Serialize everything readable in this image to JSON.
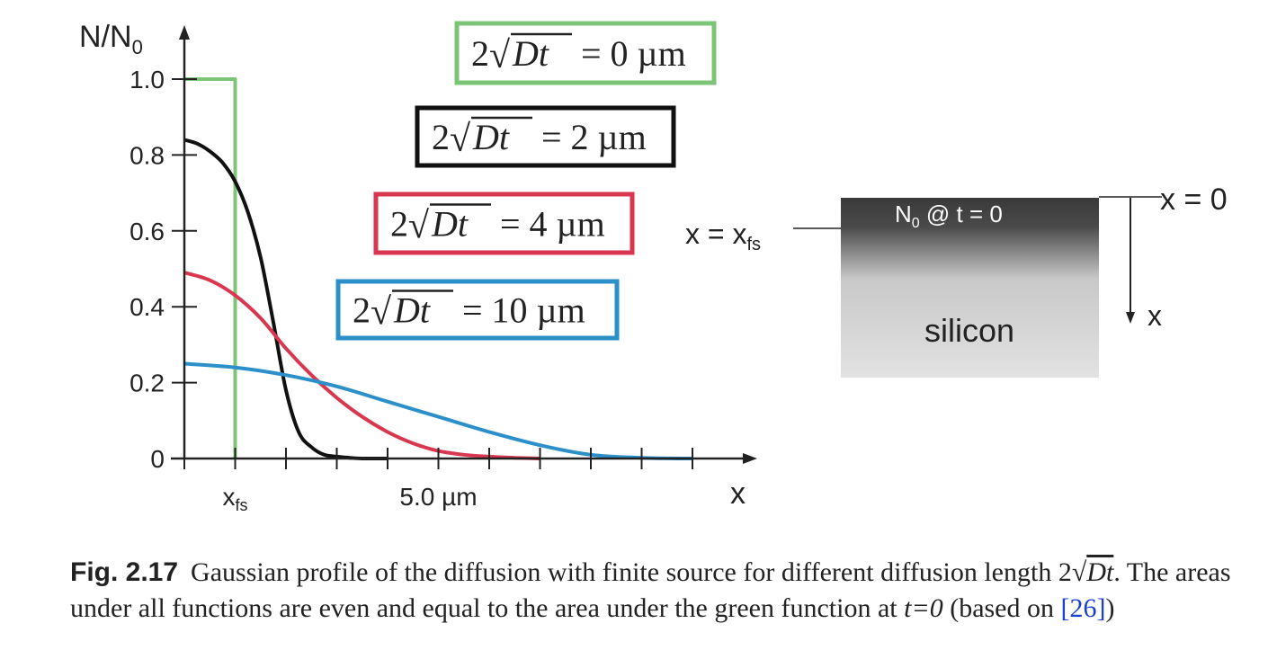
{
  "chart_data": {
    "type": "line",
    "ylabel": "N/N",
    "ylabel_sub": "0",
    "xlabel": "x",
    "ylim": [
      0,
      1.0
    ],
    "xlim": [
      0,
      10
    ],
    "y_ticks": [
      {
        "value": 0,
        "label": "0"
      },
      {
        "value": 0.2,
        "label": "0.2"
      },
      {
        "value": 0.4,
        "label": "0.4"
      },
      {
        "value": 0.6,
        "label": "0.6"
      },
      {
        "value": 0.8,
        "label": "0.8"
      },
      {
        "value": 1.0,
        "label": "1.0"
      }
    ],
    "x_ticks": [
      0,
      1,
      2,
      3,
      4,
      5,
      6,
      7,
      8,
      9,
      10
    ],
    "x_tick_labels": [
      {
        "value": 1,
        "label": "x",
        "sub": "fs"
      },
      {
        "value": 5,
        "label": "5.0 µm",
        "sub": ""
      }
    ],
    "series": [
      {
        "name": "2√Dt = 0 µm",
        "prefix": "2",
        "radicand": "Dt",
        "equals": "= 0 µm",
        "color": "#7cc576",
        "x": [
          0,
          1,
          1
        ],
        "y": [
          1.0,
          1.0,
          0
        ]
      },
      {
        "name": "2√Dt = 2 µm",
        "prefix": "2",
        "radicand": "Dt",
        "equals": "= 2 µm",
        "color": "#111111",
        "x": [
          0,
          0.25,
          0.5,
          0.75,
          1.0,
          1.25,
          1.5,
          1.75,
          2.0,
          2.25,
          2.5,
          2.75,
          3.0,
          3.25,
          3.5,
          3.75,
          4.0
        ],
        "y": [
          0.84,
          0.83,
          0.81,
          0.78,
          0.73,
          0.65,
          0.53,
          0.36,
          0.18,
          0.07,
          0.03,
          0.01,
          0.005,
          0.002,
          0,
          0,
          0
        ]
      },
      {
        "name": "2√Dt = 4 µm",
        "prefix": "2",
        "radicand": "Dt",
        "equals": "= 4 µm",
        "color": "#d9364f",
        "x": [
          0,
          0.5,
          1.0,
          1.5,
          2.0,
          2.5,
          3.0,
          3.5,
          4.0,
          4.5,
          5.0,
          5.5,
          6.0,
          6.5,
          7.0
        ],
        "y": [
          0.49,
          0.47,
          0.43,
          0.37,
          0.29,
          0.22,
          0.16,
          0.11,
          0.07,
          0.04,
          0.02,
          0.01,
          0.005,
          0.002,
          0
        ]
      },
      {
        "name": "2√Dt = 10 µm",
        "prefix": "2",
        "radicand": "Dt",
        "equals": "= 10 µm",
        "color": "#2b8fc9",
        "x": [
          0,
          1,
          2,
          3,
          4,
          5,
          6,
          7,
          8,
          9,
          10
        ],
        "y": [
          0.25,
          0.24,
          0.22,
          0.19,
          0.15,
          0.11,
          0.07,
          0.035,
          0.01,
          0.002,
          0
        ]
      }
    ],
    "inset": {
      "surface_label": "N",
      "surface_label_sub": "0",
      "surface_label_rest": " @ t = 0",
      "body_label": "silicon",
      "left_marker": "x = x",
      "left_marker_sub": "fs",
      "top_marker": "x = 0",
      "arrow_label": "x"
    }
  },
  "caption": {
    "figure_number": "Fig. 2.17",
    "text_before": "Gaussian profile of the diffusion with finite source for different diffusion length 2",
    "sqrt_radicand": "Dt",
    "text_middle": ". The areas under all functions are even and equal to the area under the green function at ",
    "time_expr": "t=0",
    "text_after": " (based on ",
    "reference": "[26]",
    "text_end": ")"
  }
}
